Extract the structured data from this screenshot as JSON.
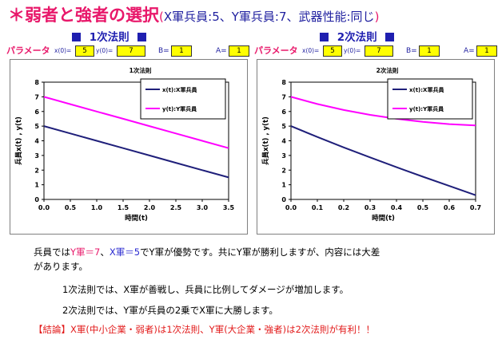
{
  "title": {
    "main": "＊弱者と強者の選択",
    "paren_open": "(",
    "sub": "X軍兵員:5、Y軍兵員:7、武器性能:同じ",
    "paren_close": ")"
  },
  "law_headers": [
    "1次法則",
    "2次法則"
  ],
  "params": {
    "label": "パラメータ",
    "x0_label": "x(0)=",
    "y0_label": "y(0)=",
    "b_label": "B=",
    "a_label": "A=",
    "sets": [
      {
        "x0": "5",
        "y0": "7",
        "b": "1",
        "a": "1"
      },
      {
        "x0": "5",
        "y0": "7",
        "b": "1",
        "a": "1"
      }
    ]
  },
  "colors": {
    "x_series": "#1f1f7a",
    "y_series": "#ff00ff",
    "accent": "#e8186a",
    "blue_text": "#1f1fb0"
  },
  "chart_data": [
    {
      "type": "line",
      "title": "1次法則",
      "xlabel": "時間(t)",
      "ylabel": "兵員x(t) , y(t)",
      "xlim": [
        0,
        3.5
      ],
      "ylim": [
        0,
        8
      ],
      "x_ticks": [
        "0.0",
        "0.5",
        "1.0",
        "1.5",
        "2.0",
        "2.5",
        "3.0",
        "3.5"
      ],
      "y_ticks": [
        "0",
        "1",
        "2",
        "3",
        "4",
        "5",
        "6",
        "7",
        "8"
      ],
      "legend_position": "top-right",
      "grid": false,
      "series": [
        {
          "name": "x(t):X軍兵員",
          "color": "#1f1f7a",
          "x": [
            0,
            0.5,
            1.0,
            1.5,
            2.0,
            2.5,
            3.0,
            3.5
          ],
          "values": [
            5,
            4.5,
            4,
            3.5,
            3,
            2.5,
            2,
            1.5
          ]
        },
        {
          "name": "y(t):Y軍兵員",
          "color": "#ff00ff",
          "x": [
            0,
            0.5,
            1.0,
            1.5,
            2.0,
            2.5,
            3.0,
            3.5
          ],
          "values": [
            7,
            6.5,
            6,
            5.5,
            5,
            4.5,
            4,
            3.5
          ]
        }
      ]
    },
    {
      "type": "line",
      "title": "2次法則",
      "xlabel": "時間(t)",
      "ylabel": "兵員x(t) , y(t)",
      "xlim": [
        0,
        0.7
      ],
      "ylim": [
        0,
        8
      ],
      "x_ticks": [
        "0.0",
        "0.1",
        "0.2",
        "0.3",
        "0.4",
        "0.5",
        "0.6",
        "0.7"
      ],
      "y_ticks": [
        "0",
        "1",
        "2",
        "3",
        "4",
        "5",
        "6",
        "7",
        "8"
      ],
      "legend_position": "top-right",
      "grid": false,
      "series": [
        {
          "name": "x(t):X軍兵員",
          "color": "#1f1f7a",
          "x": [
            0,
            0.1,
            0.2,
            0.3,
            0.4,
            0.5,
            0.6,
            0.7
          ],
          "values": [
            5,
            4.26,
            3.55,
            2.87,
            2.2,
            1.55,
            0.92,
            0.29
          ]
        },
        {
          "name": "y(t):Y軍兵員",
          "color": "#ff00ff",
          "x": [
            0,
            0.1,
            0.2,
            0.3,
            0.4,
            0.5,
            0.6,
            0.7
          ],
          "values": [
            7,
            6.51,
            6.1,
            5.77,
            5.5,
            5.29,
            5.14,
            5.05
          ]
        }
      ]
    }
  ],
  "body": {
    "line1_a": "兵員では",
    "line1_y": "Y軍＝7",
    "line1_sep": "、",
    "line1_x": "X軍＝5",
    "line1_b": "でY軍が優勢です。共にY軍が勝利しますが、内容には大差",
    "line2": "があります。",
    "line3": "1次法則では、X軍が善戦し、兵員に比例してダメージが増加します。",
    "line4": "2次法則では、Y軍が兵員の2乗でX軍に大勝します。",
    "conclusion": "【結論】X軍(中小企業・弱者)は1次法則、Y軍(大企業・強者)は2次法則が有利！！"
  }
}
